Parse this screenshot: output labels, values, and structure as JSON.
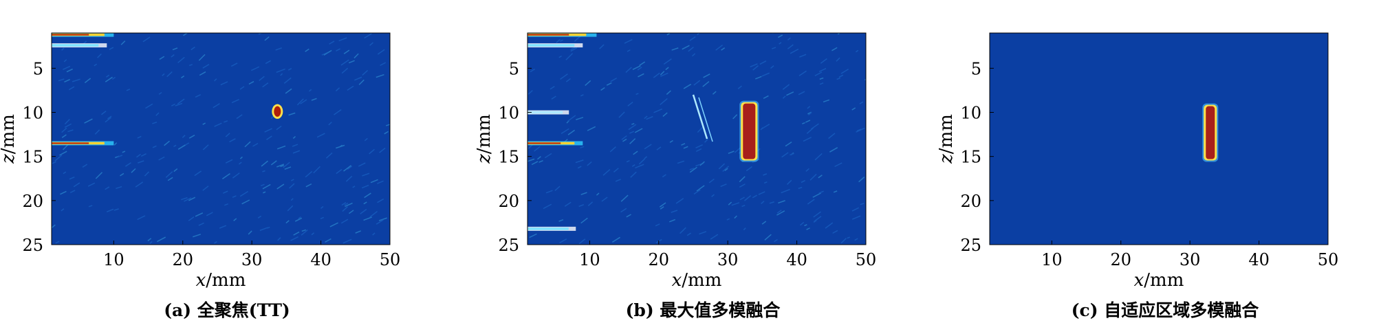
{
  "chart_data": [
    {
      "type": "heatmap",
      "caption": "(a) 全聚焦(TT)",
      "xlabel": "x/mm",
      "ylabel": "z/mm",
      "xlim": [
        1,
        50
      ],
      "ylim": [
        1,
        25
      ],
      "xticks": [
        "10",
        "20",
        "30",
        "40",
        "50"
      ],
      "yticks": [
        "5",
        "10",
        "15",
        "20",
        "25"
      ],
      "colormap": "jet",
      "background_color": "#0b3fa3",
      "features": [
        {
          "kind": "streak",
          "x": [
            1,
            10
          ],
          "z": 1.2,
          "intensity": "high"
        },
        {
          "kind": "streak",
          "x": [
            1,
            9
          ],
          "z": 2.4,
          "intensity": "medium"
        },
        {
          "kind": "streak",
          "x": [
            1,
            10
          ],
          "z": 13.5,
          "intensity": "high"
        },
        {
          "kind": "spot",
          "x": [
            33.2,
            34.2
          ],
          "z": [
            9.3,
            10.5
          ],
          "intensity": "high"
        }
      ]
    },
    {
      "type": "heatmap",
      "caption": "(b) 最大值多模融合",
      "xlabel": "x/mm",
      "ylabel": "z/mm",
      "xlim": [
        1,
        50
      ],
      "ylim": [
        1,
        25
      ],
      "xticks": [
        "10",
        "20",
        "30",
        "40",
        "50"
      ],
      "yticks": [
        "5",
        "10",
        "15",
        "20",
        "25"
      ],
      "colormap": "jet",
      "background_color": "#0b3fa3",
      "features": [
        {
          "kind": "streak",
          "x": [
            1,
            11
          ],
          "z": 1.2,
          "intensity": "high"
        },
        {
          "kind": "streak",
          "x": [
            1,
            9
          ],
          "z": 2.4,
          "intensity": "medium"
        },
        {
          "kind": "streak",
          "x": [
            1,
            7
          ],
          "z": 10.0,
          "intensity": "low"
        },
        {
          "kind": "streak",
          "x": [
            1,
            9
          ],
          "z": 13.5,
          "intensity": "high"
        },
        {
          "kind": "streak",
          "x": [
            1,
            8
          ],
          "z": 23.2,
          "intensity": "medium"
        },
        {
          "kind": "diagonal",
          "x": [
            25,
            27
          ],
          "z": [
            8,
            13
          ],
          "intensity": "low"
        },
        {
          "kind": "defect",
          "x": [
            32.2,
            34.0
          ],
          "z": [
            9.0,
            15.3
          ],
          "intensity": "high"
        }
      ]
    },
    {
      "type": "heatmap",
      "caption": "(c) 自适应区域多模融合",
      "xlabel": "x/mm",
      "ylabel": "z/mm",
      "xlim": [
        1,
        50
      ],
      "ylim": [
        1,
        25
      ],
      "xticks": [
        "10",
        "20",
        "30",
        "40",
        "50"
      ],
      "yticks": [
        "5",
        "10",
        "15",
        "20",
        "25"
      ],
      "colormap": "jet",
      "background_color": "#0b3fa3",
      "features": [
        {
          "kind": "defect",
          "x": [
            32.3,
            33.6
          ],
          "z": [
            9.3,
            15.3
          ],
          "intensity": "high"
        }
      ]
    }
  ]
}
